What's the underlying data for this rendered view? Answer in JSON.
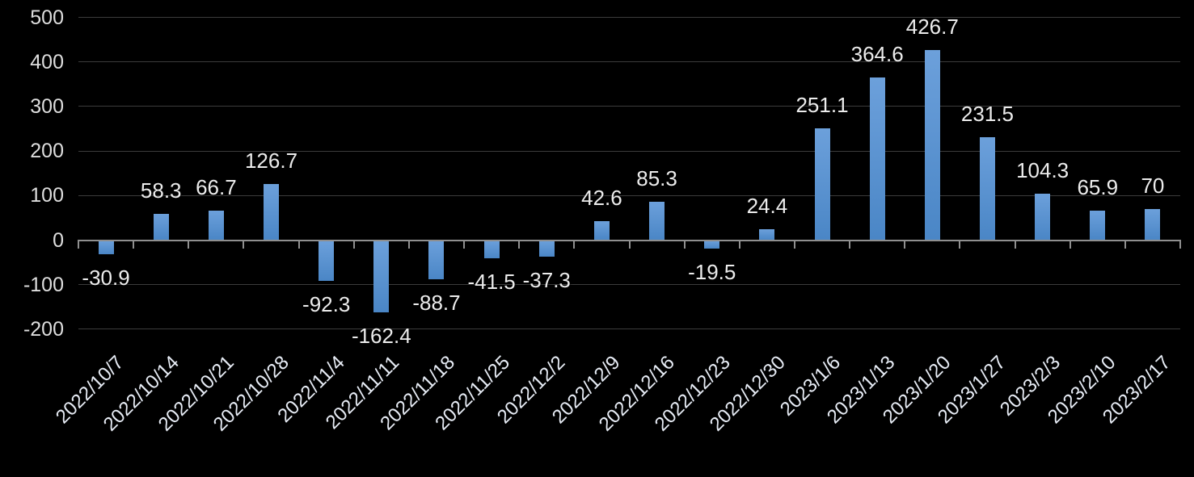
{
  "chart_data": {
    "type": "bar",
    "title": "",
    "xlabel": "",
    "ylabel": "",
    "categories": [
      "2022/10/7",
      "2022/10/14",
      "2022/10/21",
      "2022/10/28",
      "2022/11/4",
      "2022/11/11",
      "2022/11/18",
      "2022/11/25",
      "2022/12/2",
      "2022/12/9",
      "2022/12/16",
      "2022/12/23",
      "2022/12/30",
      "2023/1/6",
      "2023/1/13",
      "2023/1/20",
      "2023/1/27",
      "2023/2/3",
      "2023/2/10",
      "2023/2/17"
    ],
    "values": [
      -30.9,
      58.3,
      66.7,
      126.7,
      -92.3,
      -162.4,
      -88.7,
      -41.5,
      -37.3,
      42.6,
      85.3,
      -19.5,
      24.4,
      251.1,
      364.6,
      426.7,
      231.5,
      104.3,
      65.9,
      70
    ],
    "data_labels": [
      "-30.9",
      "58.3",
      "66.7",
      "126.7",
      "-92.3",
      "-162.4",
      "-88.7",
      "-41.5",
      "-37.3",
      "42.6",
      "85.3",
      "-19.5",
      "24.4",
      "251.1",
      "364.6",
      "426.7",
      "231.5",
      "104.3",
      "65.9",
      "70"
    ],
    "y_tick_labels": [
      "500",
      "400",
      "300",
      "200",
      "100",
      "0",
      "-100",
      "-200"
    ],
    "y_tick_values": [
      500,
      400,
      300,
      200,
      100,
      0,
      -100,
      -200
    ],
    "ylim": [
      -200,
      500
    ],
    "grid": true,
    "legend_position": "none",
    "colors": {
      "background": "#000000",
      "bar_top": "#6ca0db",
      "bar_bottom": "#4a86c6",
      "axis_line": "#8f8f8f",
      "gridline": "#3c3c3c",
      "y_label_text": "#dedede",
      "data_label_text": "#ececec",
      "x_label_text": "#e7ecf5"
    }
  }
}
